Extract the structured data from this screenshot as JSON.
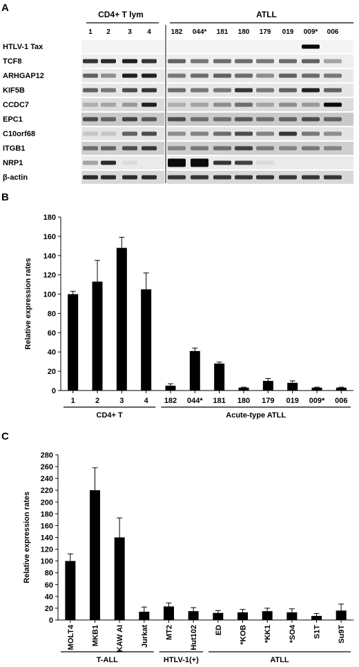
{
  "panels": {
    "a": "A",
    "b": "B",
    "c": "C"
  },
  "gel": {
    "group_left": "CD4+ T lym",
    "group_right": "ATLL",
    "lanes": [
      "1",
      "2",
      "3",
      "4",
      "182",
      "044*",
      "181",
      "180",
      "179",
      "019",
      "009*",
      "006"
    ],
    "genes": [
      "HTLV-1 Tax",
      "TCF8",
      "ARHGAP12",
      "KIF5B",
      "CCDC7",
      "EPC1",
      "C10orf68",
      "ITGB1",
      "NRP1",
      "β-actin"
    ]
  },
  "chart_data": [
    {
      "type": "bar",
      "panel": "B",
      "ylabel": "Relative expression rates",
      "ylim": [
        0,
        180
      ],
      "yticks": [
        0,
        20,
        40,
        60,
        80,
        100,
        120,
        140,
        160,
        180
      ],
      "categories": [
        "1",
        "2",
        "3",
        "4",
        "182",
        "044*",
        "181",
        "180",
        "179",
        "019",
        "009*",
        "006"
      ],
      "values": [
        100,
        113,
        148,
        105,
        5,
        41,
        28,
        3,
        10,
        8,
        3,
        3
      ],
      "errors": [
        3,
        22,
        11,
        17,
        2,
        3,
        1.5,
        0.5,
        2.5,
        2,
        0.5,
        0.5
      ],
      "groups": [
        {
          "label": "CD4+ T",
          "from": 0,
          "to": 3
        },
        {
          "label": "Acute-type ATLL",
          "from": 4,
          "to": 11
        }
      ]
    },
    {
      "type": "bar",
      "panel": "C",
      "ylabel": "Relative expression rates",
      "ylim": [
        0,
        280
      ],
      "yticks": [
        0,
        20,
        40,
        60,
        80,
        100,
        120,
        140,
        160,
        180,
        200,
        220,
        240,
        260,
        280
      ],
      "categories": [
        "MOLT4",
        "MKB1",
        "KAW AI",
        "Jurkat",
        "MT2",
        "Hut102",
        "ED",
        "*KOB",
        "*KK1",
        "*SO4",
        "S1T",
        "Su9T"
      ],
      "values": [
        100,
        220,
        140,
        14,
        23,
        15,
        12,
        13,
        15,
        13,
        7,
        16
      ],
      "errors": [
        12,
        38,
        33,
        8,
        6,
        6,
        4,
        5,
        5,
        6,
        4,
        11
      ],
      "groups": [
        {
          "label": "T-ALL",
          "from": 0,
          "to": 3
        },
        {
          "label": "HTLV-1(+)",
          "from": 4,
          "to": 5
        },
        {
          "label": "ATLL",
          "from": 6,
          "to": 11
        }
      ]
    }
  ]
}
